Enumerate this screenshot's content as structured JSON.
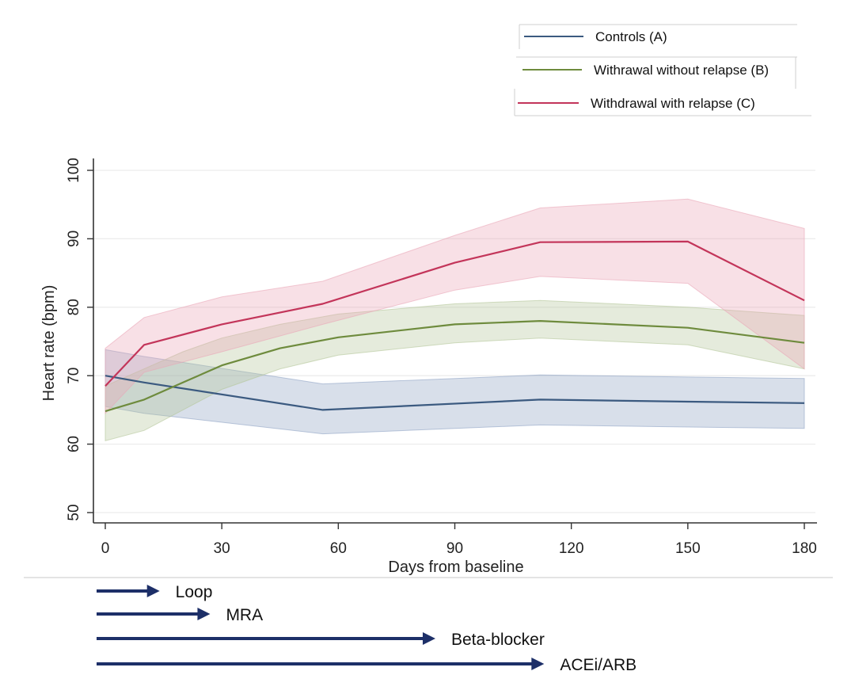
{
  "chart_data": {
    "type": "line",
    "title": "",
    "xlabel": "Days from baseline",
    "ylabel": "Heart rate (bpm)",
    "xlim": [
      0,
      180
    ],
    "ylim": [
      50,
      100
    ],
    "xticks": [
      0,
      30,
      60,
      90,
      120,
      150,
      180
    ],
    "yticks": [
      50,
      60,
      70,
      80,
      90,
      100
    ],
    "grid": true,
    "legend_position": "top-right",
    "series": [
      {
        "name": "Controls (A)",
        "color": "#3b5a80",
        "fill": "#8fa3c4",
        "x": [
          0,
          10,
          56,
          112,
          150,
          180
        ],
        "values": [
          70,
          69,
          65,
          66.5,
          66.2,
          66
        ],
        "lower": [
          65.5,
          64.5,
          61.5,
          62.8,
          62.5,
          62.3
        ],
        "upper": [
          73.8,
          72.8,
          68.8,
          70.1,
          69.8,
          69.6
        ]
      },
      {
        "name": "Withrawal without relapse (B)",
        "color": "#6e8b3d",
        "fill": "#b4c79a",
        "x": [
          0,
          10,
          20,
          30,
          45,
          60,
          90,
          112,
          150,
          180
        ],
        "values": [
          64.8,
          66.5,
          69,
          71.5,
          74,
          75.6,
          77.5,
          78,
          77,
          74.8
        ],
        "lower": [
          60.5,
          62,
          65,
          68,
          71,
          73,
          74.8,
          75.5,
          74.5,
          71
        ],
        "upper": [
          68.5,
          71,
          73.5,
          75.5,
          77.5,
          79,
          80.5,
          81,
          80,
          78.8
        ]
      },
      {
        "name": "Withdrawal with relapse (C)",
        "color": "#c3355a",
        "fill": "#eaa7b7",
        "x": [
          0,
          10,
          30,
          56,
          90,
          112,
          150,
          180
        ],
        "values": [
          68.5,
          74.5,
          77.5,
          80.5,
          86.5,
          89.5,
          89.6,
          81
        ],
        "lower": [
          64.5,
          70.5,
          73.5,
          77.5,
          82.5,
          84.5,
          83.5,
          71
        ],
        "upper": [
          74,
          78.5,
          81.5,
          83.8,
          90.5,
          94.5,
          95.8,
          91.5
        ]
      }
    ],
    "treatment_arrows": [
      {
        "label": "Loop",
        "end_day": 14
      },
      {
        "label": "MRA",
        "end_day": 27
      },
      {
        "label": "Beta-blocker",
        "end_day": 85
      },
      {
        "label": "ACEi/ARB",
        "end_day": 113
      }
    ]
  }
}
